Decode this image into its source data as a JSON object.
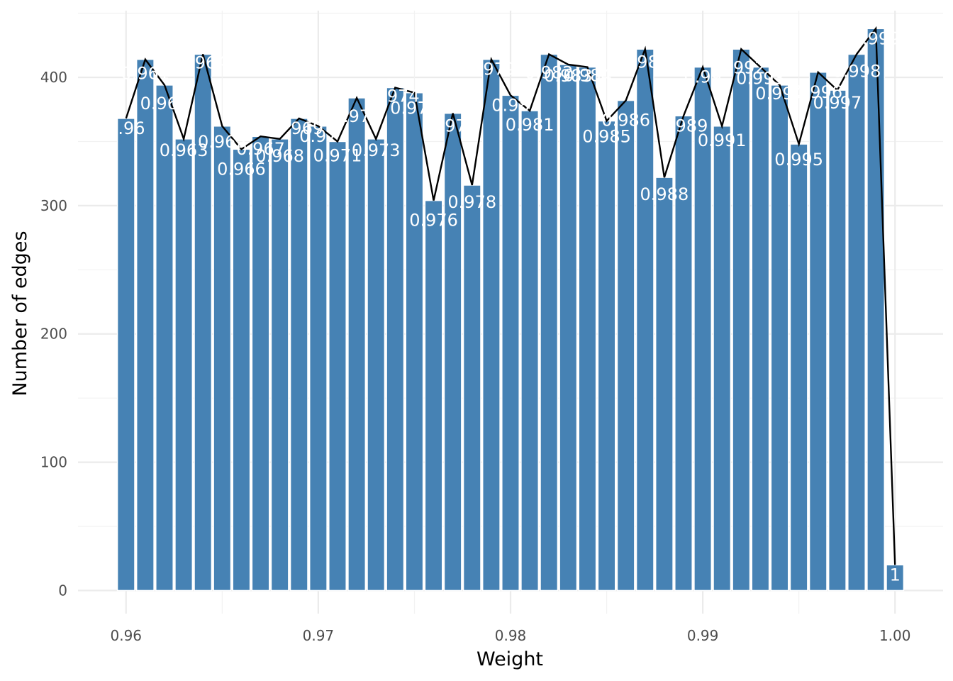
{
  "chart_data": {
    "type": "bar",
    "xlabel": "Weight",
    "ylabel": "Number of edges",
    "xlim": [
      0.9575,
      1.0025
    ],
    "ylim": [
      -18,
      452
    ],
    "x_ticks": [
      0.96,
      0.97,
      0.98,
      0.99,
      1.0
    ],
    "x_tick_labels": [
      "0.96",
      "0.97",
      "0.98",
      "0.99",
      "1.00"
    ],
    "y_ticks": [
      0,
      100,
      200,
      300,
      400
    ],
    "y_tick_labels": [
      "0",
      "100",
      "200",
      "300",
      "400"
    ],
    "bar_color": "#4682b4",
    "line_color": "#000000",
    "grid": true,
    "x": [
      0.96,
      0.961,
      0.962,
      0.963,
      0.964,
      0.965,
      0.966,
      0.967,
      0.968,
      0.969,
      0.97,
      0.971,
      0.972,
      0.973,
      0.974,
      0.975,
      0.976,
      0.977,
      0.978,
      0.979,
      0.98,
      0.981,
      0.982,
      0.983,
      0.984,
      0.985,
      0.986,
      0.987,
      0.988,
      0.989,
      0.99,
      0.991,
      0.992,
      0.993,
      0.994,
      0.995,
      0.996,
      0.997,
      0.998,
      0.999,
      1.0
    ],
    "values": [
      368,
      414,
      394,
      352,
      418,
      362,
      344,
      354,
      352,
      368,
      362,
      350,
      384,
      352,
      392,
      388,
      304,
      372,
      316,
      414,
      386,
      374,
      418,
      410,
      408,
      366,
      382,
      422,
      322,
      370,
      408,
      362,
      422,
      408,
      394,
      348,
      404,
      390,
      418,
      438,
      20
    ],
    "labels": [
      "0.96",
      "0.961",
      "0.962",
      "0.963",
      "0.964",
      "0.965",
      "0.966",
      "0.967",
      "0.968",
      "0.969",
      "0.97",
      "0.971",
      "0.972",
      "0.973",
      "0.974",
      "0.975",
      "0.976",
      "0.977",
      "0.978",
      "0.979",
      "0.98",
      "0.981",
      "0.982",
      "0.983",
      "0.984",
      "0.985",
      "0.986",
      "0.987",
      "0.988",
      "0.989",
      "0.99",
      "0.991",
      "0.992",
      "0.993",
      "0.994",
      "0.995",
      "0.996",
      "0.997",
      "0.998",
      "0.999",
      "1"
    ]
  }
}
